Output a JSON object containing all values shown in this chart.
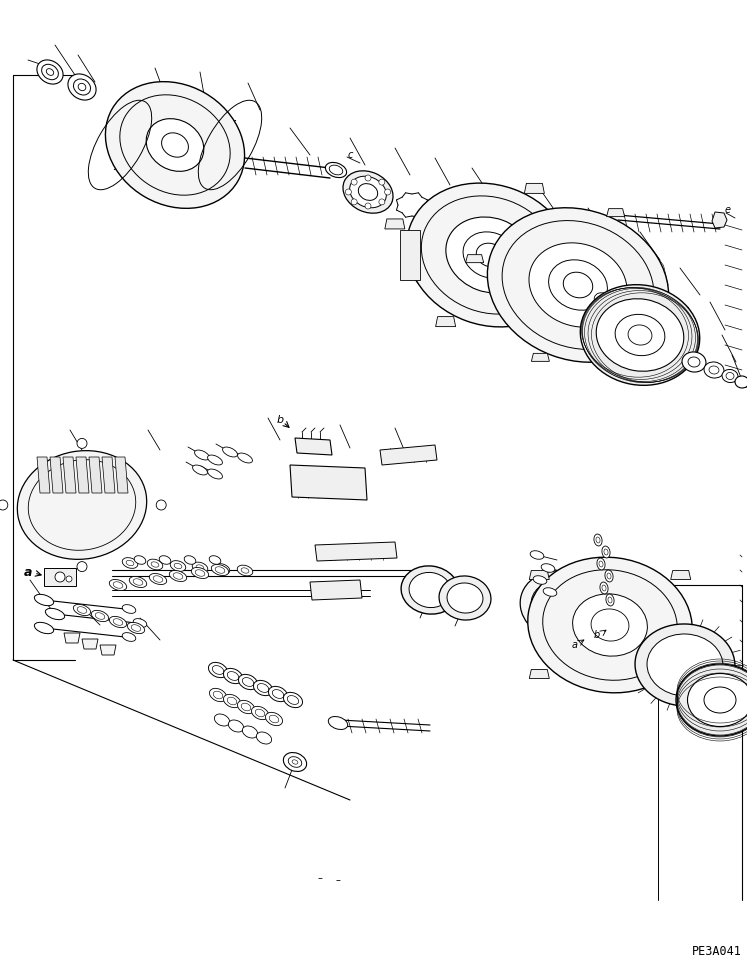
{
  "background_color": "#ffffff",
  "figure_width": 7.47,
  "figure_height": 9.63,
  "dpi": 100,
  "watermark_text": "PE3A041",
  "watermark_fontsize": 8.5,
  "label_a1": "a",
  "label_a2": "a",
  "label_b1": "b",
  "label_b2": "b",
  "label_c": "c",
  "label_e": "e"
}
